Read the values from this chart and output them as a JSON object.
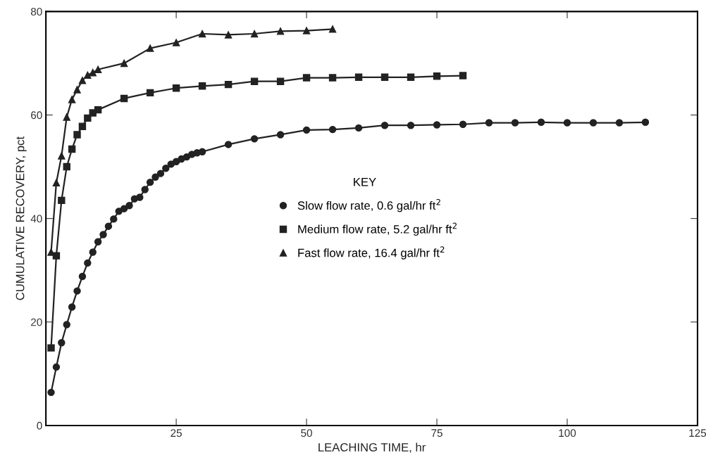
{
  "chart_data": {
    "type": "line",
    "xlabel": "LEACHING TIME, hr",
    "ylabel": "CUMULATIVE RECOVERY, pct",
    "legend_title": "KEY",
    "xlim": [
      0,
      125
    ],
    "xticks": [
      25,
      50,
      75,
      100,
      125
    ],
    "ylim": [
      0,
      80
    ],
    "yticks": [
      0,
      20,
      40,
      60,
      80
    ],
    "grid": false,
    "legend": "right",
    "series": [
      {
        "name": "Slow flow rate, 0.6 gal/hr ft$^{2}$",
        "color": "#222222",
        "marker": "circle",
        "x": [
          1,
          2,
          3,
          4,
          5,
          6,
          7,
          8,
          9,
          10,
          11,
          12,
          13,
          14,
          15,
          16,
          17,
          18,
          19,
          20,
          21,
          22,
          23,
          24,
          25,
          26,
          27,
          28,
          29,
          30,
          35,
          40,
          45,
          50,
          55,
          60,
          65,
          70,
          75,
          80,
          85,
          90,
          95,
          100,
          105,
          110,
          115
        ],
        "values": [
          6.4,
          11.3,
          16,
          19.5,
          22.9,
          26,
          28.8,
          31.4,
          33.5,
          35.5,
          36.9,
          38.5,
          39.9,
          41.4,
          41.9,
          42.5,
          43.8,
          44.1,
          45.6,
          47,
          48,
          48.7,
          49.7,
          50.5,
          51,
          51.5,
          51.9,
          52.4,
          52.7,
          52.9,
          54.3,
          55.4,
          56.2,
          57.1,
          57.2,
          57.5,
          58.0,
          58.0,
          58.1,
          58.2,
          58.5,
          58.5,
          58.6,
          58.5,
          58.5,
          58.5,
          58.6
        ]
      },
      {
        "name": "Medium flow rate, 5.2 gal/hr ft$^{2}$",
        "color": "#222222",
        "marker": "square",
        "x": [
          1,
          2,
          3,
          4,
          5,
          6,
          7,
          8,
          9,
          10,
          15,
          20,
          25,
          30,
          35,
          40,
          45,
          50,
          55,
          60,
          65,
          70,
          75,
          80
        ],
        "values": [
          15,
          32.8,
          43.5,
          50,
          53.4,
          56.2,
          57.8,
          59.4,
          60.4,
          61,
          63.2,
          64.3,
          65.2,
          65.6,
          65.9,
          66.5,
          66.5,
          67.2,
          67.2,
          67.3,
          67.3,
          67.3,
          67.5,
          67.6
        ]
      },
      {
        "name": "Fast flow rate, 16.4 gal/hr ft$^{2}$",
        "color": "#222222",
        "marker": "triangle",
        "x": [
          1,
          2,
          3,
          4,
          5,
          6,
          7,
          8,
          9,
          10,
          15,
          20,
          25,
          30,
          35,
          40,
          45,
          50,
          55
        ],
        "values": [
          33.5,
          46.9,
          52.1,
          59.6,
          63,
          64.9,
          66.7,
          67.7,
          68.2,
          68.8,
          70,
          72.9,
          74,
          75.7,
          75.5,
          75.7,
          76.2,
          76.3,
          76.6
        ]
      }
    ]
  }
}
